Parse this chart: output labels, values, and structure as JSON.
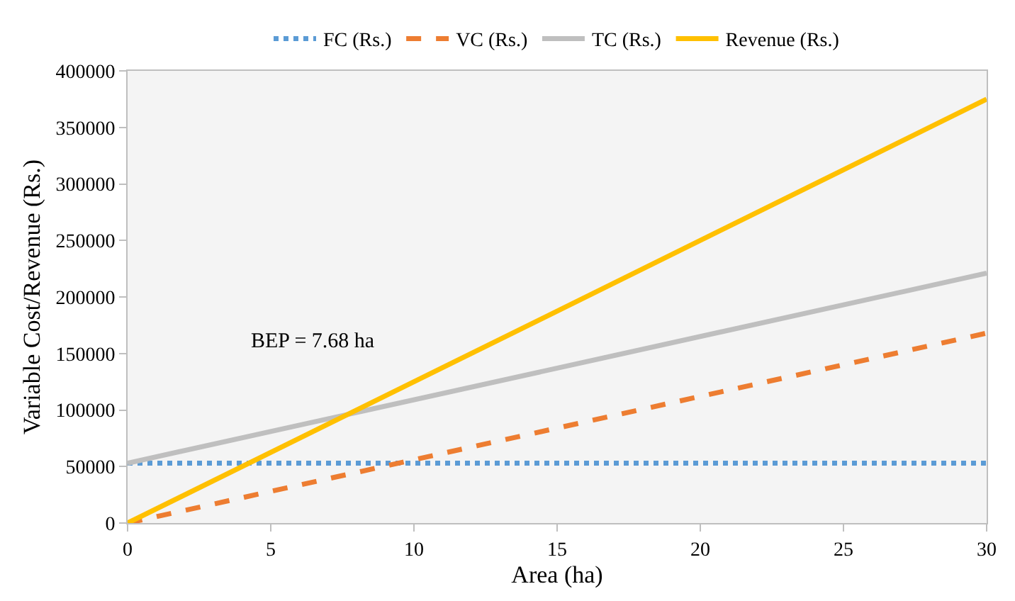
{
  "chart_data": {
    "type": "line",
    "xlabel": "Area (ha)",
    "ylabel": "Variable Cost/Revenue (Rs.)",
    "x": [
      0,
      30
    ],
    "series": [
      {
        "name": "FC (Rs.)",
        "color": "#5b9bd5",
        "values": [
          53000,
          53000
        ],
        "line_style": "dotted"
      },
      {
        "name": "VC (Rs.)",
        "color": "#ed7d31",
        "values": [
          0,
          168000
        ],
        "line_style": "dashed"
      },
      {
        "name": "TC (Rs.)",
        "color": "#bfbfbf",
        "values": [
          53000,
          221000
        ],
        "line_style": "solid"
      },
      {
        "name": "Revenue (Rs.)",
        "color": "#ffc000",
        "values": [
          0,
          375000
        ],
        "line_style": "solid"
      }
    ],
    "annotations": [
      "BEP = 7.68 ha"
    ],
    "xlim": [
      0,
      30
    ],
    "xticks": [
      0,
      5,
      10,
      15,
      20,
      25,
      30
    ],
    "ylim": [
      0,
      400000
    ],
    "yticks": [
      0,
      50000,
      100000,
      150000,
      200000,
      250000,
      300000,
      350000,
      400000
    ],
    "grid": false,
    "legend": "top",
    "marker": "none"
  }
}
